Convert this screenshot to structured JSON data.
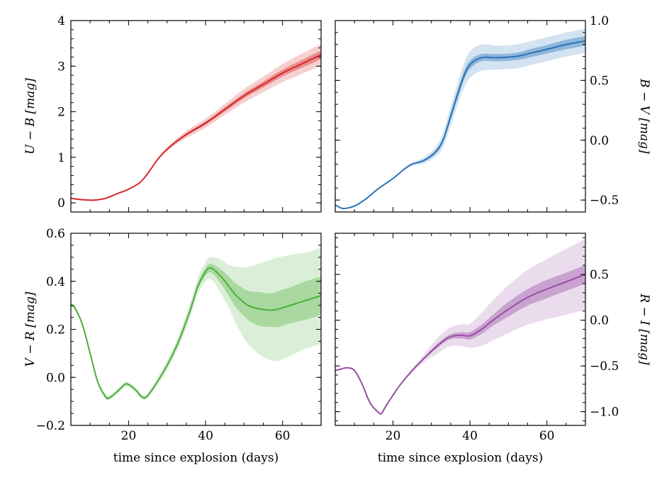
{
  "chart_data": [
    {
      "panel": "top-left",
      "type": "line",
      "ylabel": "U − B [mag]",
      "xlabel": "",
      "ylabel_side": "left",
      "xlim": [
        5,
        70
      ],
      "ylim": [
        -0.2,
        4.0
      ],
      "yticks": [
        0,
        1,
        2,
        3,
        4
      ],
      "ytick_labels": [
        "0",
        "1",
        "2",
        "3",
        "4"
      ],
      "xticks": [
        20,
        40,
        60
      ],
      "xtick_labels": [],
      "y_minor_step": 0.2,
      "color": "#d62728",
      "band_outer_opacity": 0.22,
      "band_inner_opacity": 0.4,
      "x": [
        5,
        8,
        11,
        14,
        17,
        20,
        23,
        25,
        28,
        31,
        35,
        40,
        45,
        50,
        55,
        60,
        65,
        70
      ],
      "y": [
        0.1,
        0.07,
        0.06,
        0.1,
        0.2,
        0.3,
        0.45,
        0.65,
        1.0,
        1.25,
        1.5,
        1.75,
        2.05,
        2.35,
        2.6,
        2.85,
        3.05,
        3.25
      ],
      "band_outer": [
        0,
        0,
        0,
        0,
        0,
        0,
        0,
        0.01,
        0.03,
        0.05,
        0.08,
        0.1,
        0.12,
        0.15,
        0.17,
        0.2,
        0.22,
        0.24
      ],
      "band_inner": [
        0,
        0,
        0,
        0,
        0,
        0,
        0,
        0.005,
        0.01,
        0.02,
        0.03,
        0.035,
        0.045,
        0.055,
        0.065,
        0.075,
        0.085,
        0.095
      ]
    },
    {
      "panel": "top-right",
      "type": "line",
      "ylabel": "B − V [mag]",
      "xlabel": "",
      "ylabel_side": "right",
      "xlim": [
        5,
        70
      ],
      "ylim": [
        -0.6,
        1.0
      ],
      "yticks": [
        -0.5,
        0.0,
        0.5,
        1.0
      ],
      "ytick_labels": [
        "−0.5",
        "0.0",
        "0.5",
        "1.0"
      ],
      "xticks": [
        20,
        40,
        60
      ],
      "xtick_labels": [],
      "y_minor_step": 0.1,
      "color": "#2a74b8",
      "band_outer_opacity": 0.2,
      "band_inner_opacity": 0.4,
      "x": [
        5,
        7,
        10,
        13,
        16,
        20,
        23,
        25,
        28,
        31,
        33,
        35,
        38,
        40,
        43,
        47,
        52,
        56,
        60,
        65,
        70
      ],
      "y": [
        -0.54,
        -0.57,
        -0.55,
        -0.49,
        -0.41,
        -0.32,
        -0.24,
        -0.2,
        -0.17,
        -0.1,
        0.0,
        0.2,
        0.5,
        0.63,
        0.69,
        0.69,
        0.7,
        0.73,
        0.76,
        0.8,
        0.83
      ],
      "band_outer": [
        0,
        0,
        0,
        0,
        0,
        0.005,
        0.01,
        0.015,
        0.025,
        0.04,
        0.06,
        0.08,
        0.1,
        0.11,
        0.11,
        0.1,
        0.1,
        0.1,
        0.1,
        0.1,
        0.1
      ],
      "band_inner": [
        0,
        0,
        0,
        0,
        0,
        0,
        0.003,
        0.005,
        0.008,
        0.015,
        0.02,
        0.03,
        0.035,
        0.035,
        0.03,
        0.03,
        0.03,
        0.035,
        0.035,
        0.04,
        0.04
      ]
    },
    {
      "panel": "bottom-left",
      "type": "line",
      "ylabel": "V − R [mag]",
      "xlabel": "time since explosion (days)",
      "ylabel_side": "left",
      "xlim": [
        5,
        70
      ],
      "ylim": [
        -0.2,
        0.6
      ],
      "yticks": [
        -0.2,
        0.0,
        0.2,
        0.4,
        0.6
      ],
      "ytick_labels": [
        "−0.2",
        "0.0",
        "0.2",
        "0.4",
        "0.6"
      ],
      "xticks": [
        20,
        40,
        60
      ],
      "xtick_labels": [
        "20",
        "40",
        "60"
      ],
      "y_minor_step": 0.05,
      "color": "#4daf3a",
      "band_outer_opacity": 0.2,
      "band_inner_opacity": 0.35,
      "x": [
        5,
        6,
        8,
        10,
        12,
        14,
        15,
        17,
        19,
        20,
        22,
        23,
        24,
        25,
        27,
        30,
        33,
        36,
        38,
        40,
        41,
        42,
        44,
        46,
        48,
        51,
        54,
        57,
        59,
        62,
        66,
        70
      ],
      "y": [
        0.3,
        0.29,
        0.22,
        0.1,
        -0.02,
        -0.08,
        -0.085,
        -0.06,
        -0.03,
        -0.03,
        -0.055,
        -0.075,
        -0.085,
        -0.075,
        -0.03,
        0.05,
        0.15,
        0.28,
        0.38,
        0.44,
        0.455,
        0.45,
        0.42,
        0.38,
        0.34,
        0.3,
        0.285,
        0.28,
        0.285,
        0.3,
        0.32,
        0.34
      ],
      "band_outer": [
        0.01,
        0.01,
        0.01,
        0.01,
        0.01,
        0.01,
        0.01,
        0.01,
        0.01,
        0.01,
        0.01,
        0.01,
        0.01,
        0.01,
        0.015,
        0.02,
        0.025,
        0.03,
        0.035,
        0.04,
        0.045,
        0.05,
        0.07,
        0.09,
        0.12,
        0.16,
        0.19,
        0.21,
        0.215,
        0.21,
        0.2,
        0.2
      ],
      "band_inner": [
        0.004,
        0.004,
        0.004,
        0.004,
        0.004,
        0.004,
        0.004,
        0.004,
        0.004,
        0.004,
        0.004,
        0.004,
        0.004,
        0.004,
        0.005,
        0.007,
        0.009,
        0.012,
        0.014,
        0.016,
        0.018,
        0.02,
        0.03,
        0.04,
        0.05,
        0.06,
        0.07,
        0.07,
        0.075,
        0.075,
        0.08,
        0.08
      ]
    },
    {
      "panel": "bottom-right",
      "type": "line",
      "ylabel": "R − I [mag]",
      "xlabel": "time since explosion (days)",
      "ylabel_side": "right",
      "xlim": [
        5,
        70
      ],
      "ylim": [
        -1.15,
        0.95
      ],
      "yticks": [
        -1.0,
        -0.5,
        0.0,
        0.5
      ],
      "ytick_labels": [
        "−1.0",
        "−0.5",
        "0.0",
        "0.5"
      ],
      "xticks": [
        20,
        40,
        60
      ],
      "xtick_labels": [
        "20",
        "40",
        "60"
      ],
      "y_minor_step": 0.1,
      "color": "#984ea3",
      "band_outer_opacity": 0.2,
      "band_inner_opacity": 0.4,
      "x": [
        5,
        6,
        8,
        10,
        12,
        14,
        16,
        17,
        18,
        20,
        22,
        25,
        28,
        31,
        34,
        36,
        38,
        40,
        43,
        46,
        50,
        55,
        60,
        65,
        70
      ],
      "y": [
        -0.55,
        -0.54,
        -0.52,
        -0.55,
        -0.7,
        -0.9,
        -1.0,
        -1.02,
        -0.95,
        -0.82,
        -0.7,
        -0.55,
        -0.42,
        -0.3,
        -0.2,
        -0.17,
        -0.165,
        -0.17,
        -0.1,
        0.0,
        0.12,
        0.25,
        0.34,
        0.42,
        0.5
      ],
      "band_outer": [
        0,
        0,
        0,
        0,
        0,
        0,
        0,
        0,
        0,
        0.005,
        0.01,
        0.02,
        0.04,
        0.08,
        0.1,
        0.11,
        0.12,
        0.13,
        0.18,
        0.22,
        0.26,
        0.3,
        0.33,
        0.36,
        0.39
      ],
      "band_inner": [
        0,
        0,
        0,
        0,
        0,
        0,
        0,
        0,
        0,
        0,
        0.003,
        0.005,
        0.01,
        0.02,
        0.025,
        0.03,
        0.035,
        0.04,
        0.05,
        0.06,
        0.08,
        0.09,
        0.1,
        0.1,
        0.1
      ]
    }
  ]
}
